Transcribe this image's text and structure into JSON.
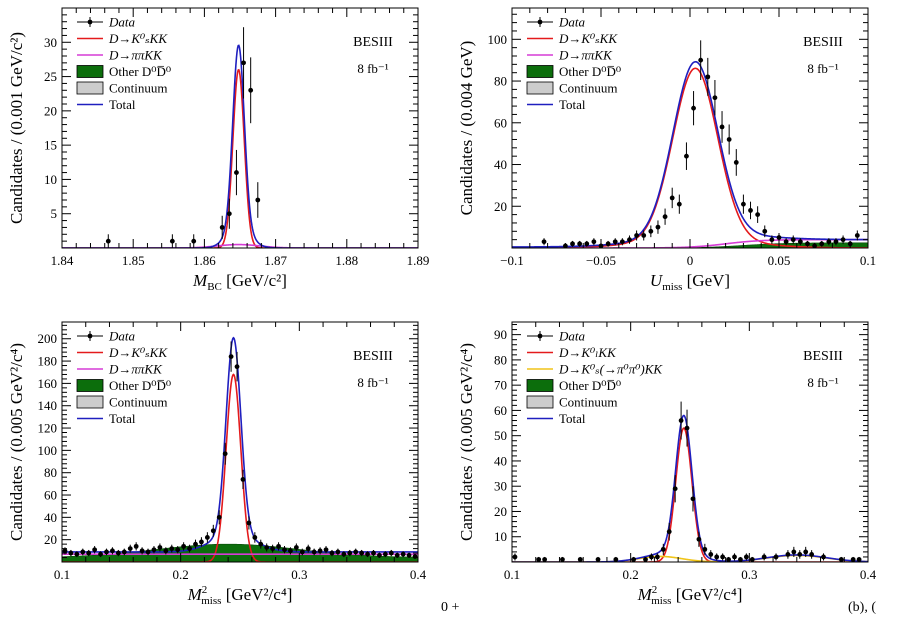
{
  "caption_fragments": {
    "left": "0 +",
    "right": "(b), ("
  },
  "chart_data": [
    {
      "id": "a",
      "type": "scatter",
      "title": "",
      "xlabel": "M_BC [GeV/c²]",
      "xlabel_main": "M",
      "xlabel_sub": "BC",
      "xlabel_unit": "[GeV/c²]",
      "ylabel": "Candidates / (0.001 GeV/c²)",
      "xlim": [
        1.84,
        1.89
      ],
      "ylim": [
        0,
        35
      ],
      "xticks": [
        1.84,
        1.85,
        1.86,
        1.87,
        1.88,
        1.89
      ],
      "xtick_labels": [
        "1.84",
        "1.85",
        "1.86",
        "1.87",
        "1.88",
        "1.89"
      ],
      "yticks": [
        5,
        10,
        15,
        20,
        25,
        30
      ],
      "ytick_labels": [
        "5",
        "10",
        "15",
        "20",
        "25",
        "30"
      ],
      "experiment_label": "BESIII",
      "lumi_label": "8 fb⁻¹",
      "legend_position": "top-left",
      "legend": [
        {
          "label": "Data",
          "kind": "data"
        },
        {
          "label": "D→K⁰ₛKK",
          "kind": "line",
          "color": "#e41a1c"
        },
        {
          "label": "D→ππKK",
          "kind": "line",
          "color": "#d63cd6"
        },
        {
          "label": "Other D⁰D̅⁰",
          "kind": "box",
          "color": "#0c6e0c"
        },
        {
          "label": "Continuum",
          "kind": "box",
          "color": "#cccccc"
        },
        {
          "label": "Total",
          "kind": "line",
          "color": "#1f1fbf"
        }
      ],
      "data_points": {
        "x": [
          1.8465,
          1.8555,
          1.8585,
          1.8625,
          1.8635,
          1.8645,
          1.8655,
          1.8665,
          1.8675
        ],
        "y": [
          1,
          1,
          1,
          3,
          5,
          11,
          27,
          23,
          7
        ],
        "yerr": [
          1,
          1,
          1,
          1.7,
          2.2,
          3.3,
          5.2,
          4.8,
          2.6
        ]
      },
      "series": [
        {
          "name": "D→K⁰ₛKK",
          "color": "#e41a1c",
          "shape": "peak",
          "mean": 1.8648,
          "sigma": 0.0008,
          "amplitude": 26,
          "tail": 0.0,
          "tail_width": 0.004
        },
        {
          "name": "D→ππKK",
          "color": "#d63cd6",
          "shape": "peak",
          "mean": 1.8648,
          "sigma": 0.003,
          "amplitude": 0.5,
          "tail": 0.0,
          "tail_width": 0.004
        },
        {
          "name": "Total",
          "color": "#1f1fbf",
          "shape": "peak",
          "mean": 1.8648,
          "sigma": 0.0008,
          "amplitude": 26.4,
          "tail": 0.12,
          "tail_width": 0.0016
        }
      ],
      "fill_bands": []
    },
    {
      "id": "b",
      "type": "scatter",
      "title": "",
      "xlabel": "U_miss [GeV]",
      "xlabel_main": "U",
      "xlabel_sub": "miss",
      "xlabel_unit": "[GeV]",
      "ylabel": "Candidates / (0.004 GeV)",
      "xlim": [
        -0.1,
        0.1
      ],
      "ylim": [
        0,
        115
      ],
      "xticks": [
        -0.1,
        -0.05,
        0,
        0.05,
        0.1
      ],
      "xtick_labels": [
        "−0.1",
        "−0.05",
        "0",
        "0.05",
        "0.1"
      ],
      "yticks": [
        20,
        40,
        60,
        80,
        100
      ],
      "ytick_labels": [
        "20",
        "40",
        "60",
        "80",
        "100"
      ],
      "experiment_label": "BESIII",
      "lumi_label": "8 fb⁻¹",
      "legend_position": "top-left",
      "legend": [
        {
          "label": "Data",
          "kind": "data"
        },
        {
          "label": "D→K⁰ₛKK",
          "kind": "line",
          "color": "#e41a1c"
        },
        {
          "label": "D→ππKK",
          "kind": "line",
          "color": "#d63cd6"
        },
        {
          "label": "Other D⁰D̅⁰",
          "kind": "box",
          "color": "#0c6e0c"
        },
        {
          "label": "Continuum",
          "kind": "box",
          "color": "#cccccc"
        },
        {
          "label": "Total",
          "kind": "line",
          "color": "#1f1fbf"
        }
      ],
      "data_points": {
        "x": [
          -0.082,
          -0.07,
          -0.066,
          -0.062,
          -0.058,
          -0.054,
          -0.05,
          -0.046,
          -0.042,
          -0.038,
          -0.034,
          -0.03,
          -0.026,
          -0.022,
          -0.018,
          -0.014,
          -0.01,
          -0.006,
          -0.002,
          0.002,
          0.006,
          0.01,
          0.014,
          0.018,
          0.022,
          0.026,
          0.03,
          0.034,
          0.038,
          0.042,
          0.046,
          0.05,
          0.054,
          0.058,
          0.062,
          0.066,
          0.07,
          0.074,
          0.078,
          0.082,
          0.086,
          0.09,
          0.094
        ],
        "y": [
          3,
          1,
          2,
          2,
          2,
          3,
          1,
          2,
          3,
          3,
          4,
          6,
          6,
          8,
          10,
          15,
          24,
          21,
          44,
          67,
          90,
          82,
          72,
          58,
          52,
          41,
          21,
          18,
          16,
          8,
          4,
          5,
          3,
          4,
          3,
          2,
          1,
          2,
          3,
          3,
          4,
          2,
          6
        ],
        "yerr": [
          1.7,
          1,
          1.4,
          1.4,
          1.4,
          1.7,
          1,
          1.4,
          1.7,
          1.7,
          2,
          2.4,
          2.4,
          2.8,
          3.2,
          3.9,
          4.9,
          4.6,
          6.6,
          8.2,
          9.5,
          9.1,
          8.5,
          7.6,
          7.2,
          6.4,
          4.6,
          4.2,
          4,
          2.8,
          2,
          2.2,
          1.7,
          2,
          1.7,
          1.4,
          1,
          1.4,
          1.7,
          1.7,
          2,
          1.4,
          2.4
        ]
      },
      "series": [
        {
          "name": "D→K⁰ₛKK",
          "color": "#e41a1c",
          "shape": "peak",
          "mean": 0.003,
          "sigma": 0.0125,
          "amplitude": 82,
          "tail": 0.05,
          "tail_width": 0.03
        },
        {
          "name": "D→ππKK",
          "color": "#d63cd6",
          "shape": "sigmoid",
          "lo": 0,
          "hi": 4,
          "center": 0.02,
          "width": 0.01
        },
        {
          "name": "Total",
          "color": "#1f1fbf",
          "shape": "peak",
          "mean": 0.003,
          "sigma": 0.0125,
          "amplitude": 84,
          "tail": 0.05,
          "tail_width": 0.03,
          "add_sigmoid": {
            "lo": 0.5,
            "hi": 4,
            "center": 0.02,
            "width": 0.01
          }
        }
      ],
      "fill_bands": [
        {
          "name": "Other D⁰D̅⁰",
          "color": "#0c6e0c",
          "shape": "sigmoid",
          "lo": 0,
          "hi": 2.5,
          "center": 0.03,
          "width": 0.012
        }
      ]
    },
    {
      "id": "c",
      "type": "scatter",
      "title": "",
      "xlabel": "M²_miss [GeV²/c⁴]",
      "xlabel_main": "M",
      "xlabel_sub": "miss",
      "xlabel_sup": "2",
      "xlabel_unit": "[GeV²/c⁴]",
      "ylabel": "Candidates / (0.005 GeV²/c⁴)",
      "xlim": [
        0.1,
        0.4
      ],
      "ylim": [
        0,
        215
      ],
      "xticks": [
        0.1,
        0.2,
        0.3,
        0.4
      ],
      "xtick_labels": [
        "0.1",
        "0.2",
        "0.3",
        "0.4"
      ],
      "yticks": [
        20,
        40,
        60,
        80,
        100,
        120,
        140,
        160,
        180,
        200
      ],
      "ytick_labels": [
        "20",
        "40",
        "60",
        "80",
        "100",
        "120",
        "140",
        "160",
        "180",
        "200"
      ],
      "experiment_label": "BESIII",
      "lumi_label": "8 fb⁻¹",
      "legend_position": "top-left",
      "legend": [
        {
          "label": "Data",
          "kind": "data"
        },
        {
          "label": "D→K⁰ₛKK",
          "kind": "line",
          "color": "#e41a1c"
        },
        {
          "label": "D→ππKK",
          "kind": "line",
          "color": "#d63cd6"
        },
        {
          "label": "Other D⁰D̅⁰",
          "kind": "box",
          "color": "#0c6e0c"
        },
        {
          "label": "Continuum",
          "kind": "box",
          "color": "#cccccc"
        },
        {
          "label": "Total",
          "kind": "line",
          "color": "#1f1fbf"
        }
      ],
      "data_points": {
        "x": [
          0.1025,
          0.1075,
          0.1125,
          0.1175,
          0.1225,
          0.1275,
          0.1325,
          0.1375,
          0.1425,
          0.1475,
          0.1525,
          0.1575,
          0.1625,
          0.1675,
          0.1725,
          0.1775,
          0.1825,
          0.1875,
          0.1925,
          0.1975,
          0.2025,
          0.2075,
          0.2125,
          0.2175,
          0.2225,
          0.2275,
          0.2325,
          0.2375,
          0.2425,
          0.2475,
          0.2525,
          0.2575,
          0.2625,
          0.2675,
          0.2725,
          0.2775,
          0.2825,
          0.2875,
          0.2925,
          0.2975,
          0.3025,
          0.3075,
          0.3125,
          0.3175,
          0.3225,
          0.3275,
          0.3325,
          0.3375,
          0.3425,
          0.3475,
          0.3525,
          0.3575,
          0.3625,
          0.3675,
          0.3725,
          0.3775,
          0.3825,
          0.3875,
          0.3925,
          0.3975
        ],
        "y": [
          10,
          8,
          7,
          9,
          8,
          11,
          7,
          9,
          10,
          8,
          9,
          12,
          14,
          10,
          9,
          11,
          13,
          10,
          12,
          11,
          14,
          12,
          16,
          18,
          22,
          28,
          40,
          97,
          184,
          175,
          74,
          35,
          22,
          16,
          13,
          12,
          14,
          11,
          10,
          13,
          9,
          12,
          9,
          10,
          11,
          8,
          9,
          7,
          8,
          9,
          8,
          7,
          8,
          6,
          7,
          8,
          6,
          7,
          6,
          5
        ],
        "yerr": [
          3.2,
          2.8,
          2.6,
          3,
          2.8,
          3.3,
          2.6,
          3,
          3.2,
          2.8,
          3,
          3.5,
          3.7,
          3.2,
          3,
          3.3,
          3.6,
          3.2,
          3.5,
          3.3,
          3.7,
          3.5,
          4,
          4.2,
          4.7,
          5.3,
          6.3,
          9.8,
          13.6,
          13.2,
          8.6,
          5.9,
          4.7,
          4,
          3.6,
          3.5,
          3.7,
          3.3,
          3.2,
          3.6,
          3,
          3.5,
          3,
          3.2,
          3.3,
          2.8,
          3,
          2.6,
          2.8,
          3,
          2.8,
          2.6,
          2.8,
          2.4,
          2.6,
          2.8,
          2.4,
          2.6,
          2.4,
          2.2
        ]
      },
      "series": [
        {
          "name": "D→K⁰ₛKK",
          "color": "#e41a1c",
          "shape": "peak",
          "mean": 0.2445,
          "sigma": 0.0062,
          "amplitude": 168,
          "tail": 0.0,
          "tail_width": 0.02
        },
        {
          "name": "D→ππKK",
          "color": "#d63cd6",
          "shape": "flat",
          "value": 7
        },
        {
          "name": "Total",
          "color": "#1f1fbf",
          "shape": "peak",
          "mean": 0.2445,
          "sigma": 0.0062,
          "amplitude": 176,
          "tail": 0.09,
          "tail_width": 0.018,
          "baseline": 9
        }
      ],
      "fill_bands": [
        {
          "name": "Other D⁰D̅⁰",
          "color": "#0c6e0c",
          "shape": "bump",
          "mean": 0.24,
          "sigma": 0.06,
          "amplitude": 12,
          "baseline": 4
        }
      ]
    },
    {
      "id": "d",
      "type": "scatter",
      "title": "",
      "xlabel": "M²_miss [GeV²/c⁴]",
      "xlabel_main": "M",
      "xlabel_sub": "miss",
      "xlabel_sup": "2",
      "xlabel_unit": "[GeV²/c⁴]",
      "ylabel": "Candidates / (0.005 GeV²/c⁴)",
      "xlim": [
        0.1,
        0.4
      ],
      "ylim": [
        0,
        95
      ],
      "xticks": [
        0.1,
        0.2,
        0.3,
        0.4
      ],
      "xtick_labels": [
        "0.1",
        "0.2",
        "0.3",
        "0.4"
      ],
      "yticks": [
        10,
        20,
        30,
        40,
        50,
        60,
        70,
        80,
        90
      ],
      "ytick_labels": [
        "10",
        "20",
        "30",
        "40",
        "50",
        "60",
        "70",
        "80",
        "90"
      ],
      "experiment_label": "BESIII",
      "lumi_label": "8 fb⁻¹",
      "legend_position": "top-left",
      "legend": [
        {
          "label": "Data",
          "kind": "data"
        },
        {
          "label": "D→K⁰ₗKK",
          "kind": "line",
          "color": "#e41a1c"
        },
        {
          "label": "D→K⁰ₛ(→π⁰π⁰)KK",
          "kind": "line",
          "color": "#f0c419"
        },
        {
          "label": "Other D⁰D̅⁰",
          "kind": "box",
          "color": "#0c6e0c"
        },
        {
          "label": "Continuum",
          "kind": "box",
          "color": "#cccccc"
        },
        {
          "label": "Total",
          "kind": "line",
          "color": "#1f1fbf"
        }
      ],
      "data_points": {
        "x": [
          0.1025,
          0.1225,
          0.1275,
          0.1425,
          0.1575,
          0.1725,
          0.1875,
          0.2025,
          0.2125,
          0.2175,
          0.2225,
          0.2275,
          0.2325,
          0.2375,
          0.2425,
          0.2475,
          0.2525,
          0.2575,
          0.2625,
          0.2675,
          0.2725,
          0.2775,
          0.2825,
          0.2875,
          0.2925,
          0.2975,
          0.3025,
          0.3125,
          0.3225,
          0.3325,
          0.3375,
          0.3425,
          0.3475,
          0.3525,
          0.3625,
          0.3775,
          0.3875,
          0.3925
        ],
        "y": [
          2,
          1,
          1,
          1,
          1,
          1,
          1,
          1,
          1,
          2,
          2,
          5,
          12,
          29,
          56,
          53,
          25,
          9,
          5,
          3,
          2,
          2,
          1,
          2,
          1,
          2,
          1,
          2,
          2,
          3,
          4,
          3,
          4,
          3,
          2,
          1,
          1,
          1
        ],
        "yerr": [
          1.4,
          1,
          1,
          1,
          1,
          1,
          1,
          1,
          1,
          1.4,
          1.4,
          2.2,
          3.5,
          5.4,
          7.5,
          7.3,
          5,
          3,
          2.2,
          1.7,
          1.4,
          1.4,
          1,
          1.4,
          1,
          1.4,
          1,
          1.4,
          1.4,
          1.7,
          2,
          1.7,
          2,
          1.7,
          1.4,
          1,
          1,
          1
        ]
      },
      "series": [
        {
          "name": "D→K⁰ₗKK",
          "color": "#e41a1c",
          "shape": "peak",
          "mean": 0.2448,
          "sigma": 0.0068,
          "amplitude": 53,
          "tail": 0.0,
          "tail_width": 0.02
        },
        {
          "name": "D→K⁰ₛ(→π⁰π⁰)KK",
          "color": "#f0c419",
          "shape": "double-bump",
          "bumps": [
            {
              "mean": 0.225,
              "sigma": 0.018,
              "amplitude": 2.2
            },
            {
              "mean": 0.34,
              "sigma": 0.025,
              "amplitude": 2.6
            }
          ]
        },
        {
          "name": "Total",
          "color": "#1f1fbf",
          "shape": "peak",
          "mean": 0.2448,
          "sigma": 0.0068,
          "amplitude": 54,
          "tail": 0.05,
          "tail_width": 0.015,
          "add_bumps": [
            {
              "mean": 0.225,
              "sigma": 0.018,
              "amplitude": 2.4
            },
            {
              "mean": 0.34,
              "sigma": 0.025,
              "amplitude": 2.8
            }
          ]
        }
      ],
      "fill_bands": []
    }
  ]
}
